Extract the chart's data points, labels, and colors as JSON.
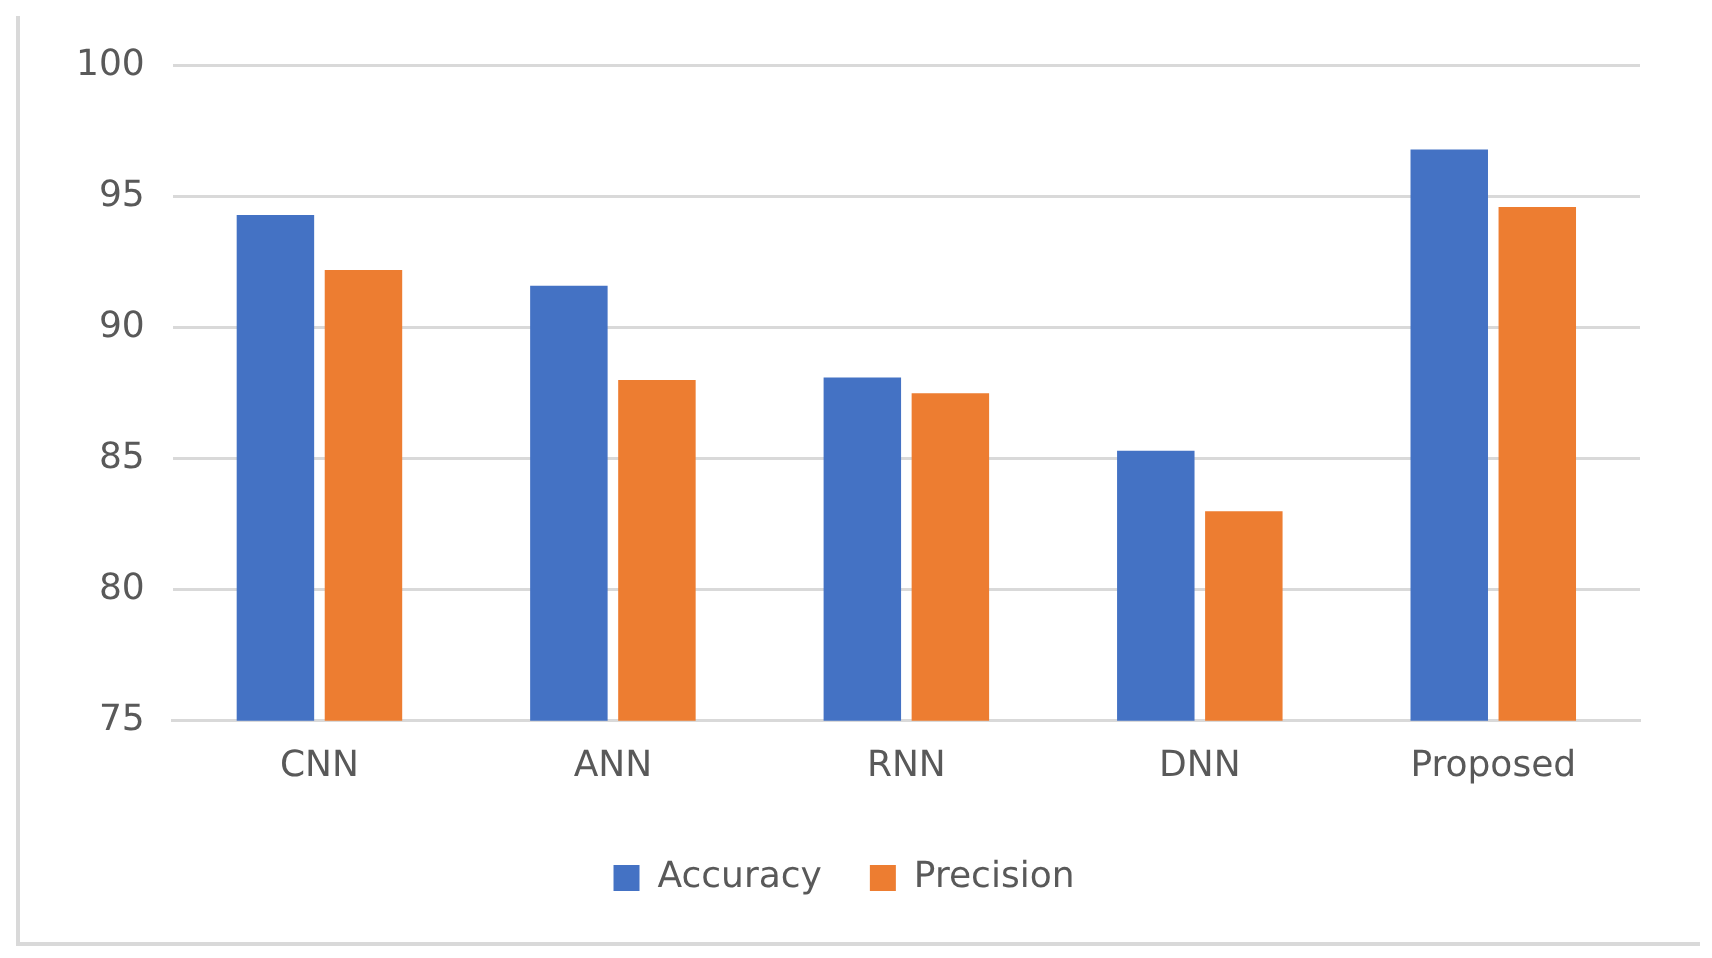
{
  "chart_data": {
    "type": "bar",
    "categories": [
      "CNN",
      "ANN",
      "RNN",
      "DNN",
      "Proposed"
    ],
    "series": [
      {
        "name": "Accuracy",
        "color": "#4472c4",
        "values": [
          94.3,
          91.6,
          88.1,
          85.3,
          96.8
        ]
      },
      {
        "name": "Precision",
        "color": "#ed7d31",
        "values": [
          92.2,
          88.0,
          87.5,
          83.0,
          94.6
        ]
      }
    ],
    "ylim": [
      75,
      100
    ],
    "yticks": [
      75,
      80,
      85,
      90,
      95,
      100
    ],
    "grid": "y",
    "legend": "bottom"
  }
}
